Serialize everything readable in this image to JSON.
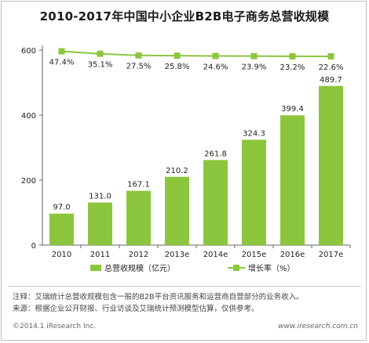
{
  "title": "2010-2017年中国中小企业B2B电子商务总营收规模",
  "chart_data": {
    "type": "bar+line",
    "categories": [
      "2010",
      "2011",
      "2012",
      "2013e",
      "2014e",
      "2015e",
      "2016e",
      "2017e"
    ],
    "series": [
      {
        "name": "总营收规模（亿元）",
        "kind": "bar",
        "axis": "left",
        "values": [
          97.0,
          131.0,
          167.1,
          210.2,
          261.8,
          324.3,
          399.4,
          489.7
        ],
        "labels": [
          "97.0",
          "131.0",
          "167.1",
          "210.2",
          "261.8",
          "324.3",
          "399.4",
          "489.7"
        ]
      },
      {
        "name": "增长率（%）",
        "kind": "line",
        "axis": "none",
        "values": [
          47.4,
          35.1,
          27.5,
          25.8,
          24.6,
          23.9,
          23.2,
          22.6
        ],
        "labels": [
          "47.4%",
          "35.1%",
          "27.5%",
          "25.8%",
          "24.6%",
          "23.9%",
          "23.2%",
          "22.6%"
        ]
      }
    ],
    "yticks": [
      "0",
      "200",
      "400",
      "600"
    ],
    "ylim": [
      0,
      600
    ],
    "colors": {
      "bar": "#8cc63e",
      "line": "#8cc63e",
      "axis": "#666666"
    },
    "legend_position": "bottom"
  },
  "legend": {
    "bar_label": "总营收规模（亿元）",
    "line_label": "增长率（%）"
  },
  "notes": [
    "注释：艾瑞统计总营收规模包含一般的B2B平台资讯服务和运营商自营部分的业务收入。",
    "来源：根据企业公开财报、行业访谈及艾瑞统计预测模型估算，仅供参考。"
  ],
  "footer": {
    "copyright": "©2014.1 iResearch Inc.",
    "website": "www.iresearch.com.cn"
  }
}
